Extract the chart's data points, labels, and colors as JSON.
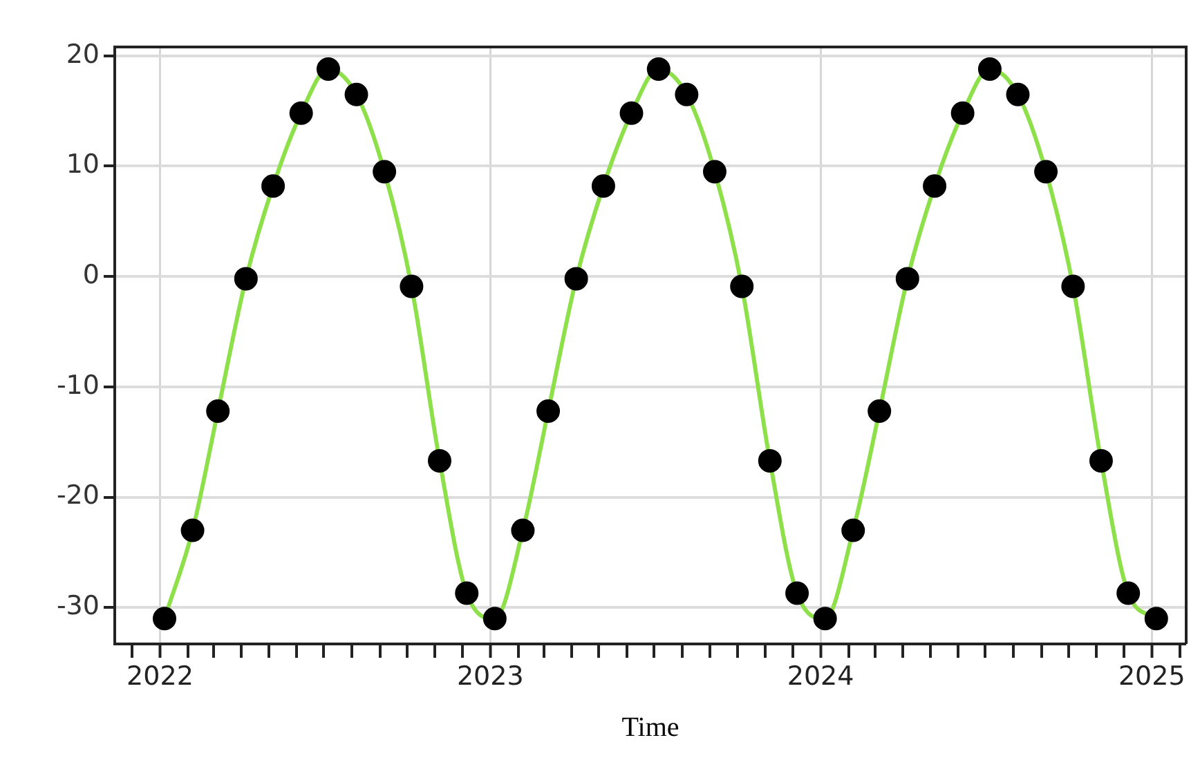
{
  "chart_data": {
    "type": "line",
    "xlabel": "Time",
    "grid": true,
    "marker": "circle",
    "line_style": "solid",
    "x": [
      "2022-01-06",
      "2022-02-06",
      "2022-03-06",
      "2022-04-06",
      "2022-05-06",
      "2022-06-06",
      "2022-07-06",
      "2022-08-06",
      "2022-09-06",
      "2022-10-06",
      "2022-11-06",
      "2022-12-06",
      "2023-01-06",
      "2023-02-06",
      "2023-03-06",
      "2023-04-06",
      "2023-05-06",
      "2023-06-06",
      "2023-07-06",
      "2023-08-06",
      "2023-09-06",
      "2023-10-06",
      "2023-11-06",
      "2023-12-06",
      "2024-01-06",
      "2024-02-06",
      "2024-03-06",
      "2024-04-06",
      "2024-05-06",
      "2024-06-06",
      "2024-07-06",
      "2024-08-06",
      "2024-09-06",
      "2024-10-06",
      "2024-11-06",
      "2024-12-06",
      "2025-01-06"
    ],
    "series": [
      {
        "color": "#8ee04a",
        "values": [
          -31,
          -23,
          -12.2,
          -0.2,
          8.2,
          14.8,
          18.8,
          16.5,
          9.5,
          -0.9,
          -16.7,
          -28.7,
          -31,
          -23,
          -12.2,
          -0.2,
          8.2,
          14.8,
          18.8,
          16.5,
          9.5,
          -0.9,
          -16.7,
          -28.7,
          -31,
          -23,
          -12.2,
          -0.2,
          8.2,
          14.8,
          18.8,
          16.5,
          9.5,
          -0.9,
          -16.7,
          -28.7,
          -31
        ]
      }
    ],
    "xlim": [
      "2021-11-12",
      "2025-02-08"
    ],
    "xticks": [
      {
        "value": "2021-12",
        "label": null
      },
      {
        "value": "2022",
        "label": "2022"
      },
      {
        "value": "2022-02",
        "label": null
      },
      {
        "value": "2022-03",
        "label": null
      },
      {
        "value": "2022-04",
        "label": null
      },
      {
        "value": "2022-05",
        "label": null
      },
      {
        "value": "2022-06",
        "label": null
      },
      {
        "value": "2022-07",
        "label": null
      },
      {
        "value": "2022-08",
        "label": null
      },
      {
        "value": "2022-09",
        "label": null
      },
      {
        "value": "2022-10",
        "label": null
      },
      {
        "value": "2022-11",
        "label": null
      },
      {
        "value": "2022-12",
        "label": null
      },
      {
        "value": "2023",
        "label": "2023"
      },
      {
        "value": "2023-02",
        "label": null
      },
      {
        "value": "2023-03",
        "label": null
      },
      {
        "value": "2023-04",
        "label": null
      },
      {
        "value": "2023-05",
        "label": null
      },
      {
        "value": "2023-06",
        "label": null
      },
      {
        "value": "2023-07",
        "label": null
      },
      {
        "value": "2023-08",
        "label": null
      },
      {
        "value": "2023-09",
        "label": null
      },
      {
        "value": "2023-10",
        "label": null
      },
      {
        "value": "2023-11",
        "label": null
      },
      {
        "value": "2023-12",
        "label": null
      },
      {
        "value": "2024",
        "label": "2024"
      },
      {
        "value": "2024-02",
        "label": null
      },
      {
        "value": "2024-03",
        "label": null
      },
      {
        "value": "2024-04",
        "label": null
      },
      {
        "value": "2024-05",
        "label": null
      },
      {
        "value": "2024-06",
        "label": null
      },
      {
        "value": "2024-07",
        "label": null
      },
      {
        "value": "2024-08",
        "label": null
      },
      {
        "value": "2024-09",
        "label": null
      },
      {
        "value": "2024-10",
        "label": null
      },
      {
        "value": "2024-11",
        "label": null
      },
      {
        "value": "2024-12",
        "label": null
      },
      {
        "value": "2025",
        "label": "2025"
      },
      {
        "value": "2025-02",
        "label": null
      }
    ],
    "ylim": [
      -33.3,
      20.8
    ],
    "yticks": [
      -30,
      -20,
      -10,
      0,
      10,
      20
    ]
  }
}
